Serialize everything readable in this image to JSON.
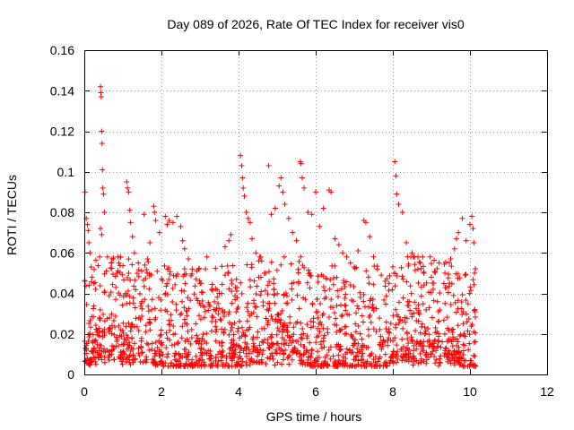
{
  "chart_data": {
    "type": "scatter",
    "title": "Day 089 of 2026, Rate Of TEC Index for receiver vis0",
    "xlabel": "GPS time / hours",
    "ylabel": "ROTI / TECUs",
    "xlim": [
      0,
      12
    ],
    "ylim": [
      0,
      0.16
    ],
    "xticks": [
      0,
      2,
      4,
      6,
      8,
      10,
      12
    ],
    "yticks": [
      0,
      0.02,
      0.04,
      0.06,
      0.08,
      0.1,
      0.12,
      0.14,
      0.16
    ],
    "grid": true,
    "marker": "plus",
    "color": "#ff0000",
    "data_range_hours": [
      0,
      10.15
    ],
    "series": [
      {
        "name": "vis0",
        "points": [
          [
            0.02,
            0.09
          ],
          [
            0.05,
            0.077
          ],
          [
            0.08,
            0.074
          ],
          [
            0.1,
            0.071
          ],
          [
            0.12,
            0.065
          ],
          [
            0.15,
            0.06
          ],
          [
            0.18,
            0.053
          ],
          [
            0.2,
            0.048
          ],
          [
            0.25,
            0.045
          ],
          [
            0.42,
            0.142
          ],
          [
            0.43,
            0.139
          ],
          [
            0.44,
            0.137
          ],
          [
            0.45,
            0.12
          ],
          [
            0.46,
            0.114
          ],
          [
            0.47,
            0.101
          ],
          [
            0.48,
            0.092
          ],
          [
            0.5,
            0.089
          ],
          [
            0.52,
            0.08
          ],
          [
            0.42,
            0.072
          ],
          [
            0.45,
            0.069
          ],
          [
            0.6,
            0.058
          ],
          [
            0.7,
            0.055
          ],
          [
            0.85,
            0.05
          ],
          [
            1.1,
            0.095
          ],
          [
            1.12,
            0.092
          ],
          [
            1.15,
            0.09
          ],
          [
            1.18,
            0.081
          ],
          [
            1.2,
            0.075
          ],
          [
            1.25,
            0.068
          ],
          [
            1.3,
            0.06
          ],
          [
            1.4,
            0.055
          ],
          [
            1.55,
            0.079
          ],
          [
            1.7,
            0.065
          ],
          [
            1.8,
            0.083
          ],
          [
            1.82,
            0.08
          ],
          [
            1.85,
            0.076
          ],
          [
            1.95,
            0.07
          ],
          [
            2.1,
            0.078
          ],
          [
            2.15,
            0.074
          ],
          [
            2.2,
            0.076
          ],
          [
            2.3,
            0.075
          ],
          [
            2.4,
            0.078
          ],
          [
            2.5,
            0.073
          ],
          [
            2.55,
            0.066
          ],
          [
            2.6,
            0.062
          ],
          [
            2.7,
            0.057
          ],
          [
            2.8,
            0.052
          ],
          [
            2.9,
            0.047
          ],
          [
            3.0,
            0.045
          ],
          [
            3.18,
            0.058
          ],
          [
            3.3,
            0.042
          ],
          [
            3.5,
            0.04
          ],
          [
            3.65,
            0.063
          ],
          [
            3.75,
            0.066
          ],
          [
            3.8,
            0.069
          ],
          [
            4.05,
            0.108
          ],
          [
            4.08,
            0.103
          ],
          [
            4.1,
            0.097
          ],
          [
            4.12,
            0.092
          ],
          [
            4.15,
            0.088
          ],
          [
            4.2,
            0.08
          ],
          [
            4.25,
            0.077
          ],
          [
            4.3,
            0.075
          ],
          [
            4.35,
            0.067
          ],
          [
            4.45,
            0.06
          ],
          [
            4.55,
            0.058
          ],
          [
            4.6,
            0.056
          ],
          [
            4.7,
            0.05
          ],
          [
            4.78,
            0.103
          ],
          [
            4.85,
            0.079
          ],
          [
            4.95,
            0.082
          ],
          [
            5.05,
            0.093
          ],
          [
            5.1,
            0.097
          ],
          [
            5.15,
            0.09
          ],
          [
            5.2,
            0.084
          ],
          [
            5.3,
            0.077
          ],
          [
            5.4,
            0.07
          ],
          [
            5.5,
            0.066
          ],
          [
            5.6,
            0.105
          ],
          [
            5.62,
            0.104
          ],
          [
            5.65,
            0.097
          ],
          [
            5.7,
            0.092
          ],
          [
            5.8,
            0.08
          ],
          [
            5.9,
            0.079
          ],
          [
            6.0,
            0.09
          ],
          [
            6.1,
            0.073
          ],
          [
            6.2,
            0.082
          ],
          [
            6.35,
            0.091
          ],
          [
            6.4,
            0.09
          ],
          [
            6.5,
            0.067
          ],
          [
            6.6,
            0.064
          ],
          [
            6.7,
            0.06
          ],
          [
            6.8,
            0.058
          ],
          [
            6.9,
            0.055
          ],
          [
            7.0,
            0.053
          ],
          [
            7.1,
            0.061
          ],
          [
            7.25,
            0.076
          ],
          [
            7.3,
            0.075
          ],
          [
            7.4,
            0.068
          ],
          [
            7.5,
            0.058
          ],
          [
            7.6,
            0.052
          ],
          [
            7.7,
            0.049
          ],
          [
            7.8,
            0.046
          ],
          [
            7.9,
            0.045
          ],
          [
            8.05,
            0.105
          ],
          [
            8.08,
            0.098
          ],
          [
            8.1,
            0.089
          ],
          [
            8.15,
            0.084
          ],
          [
            8.25,
            0.08
          ],
          [
            8.35,
            0.065
          ],
          [
            8.5,
            0.06
          ],
          [
            8.65,
            0.052
          ],
          [
            8.8,
            0.05
          ],
          [
            9.0,
            0.048
          ],
          [
            9.2,
            0.055
          ],
          [
            9.35,
            0.05
          ],
          [
            9.5,
            0.057
          ],
          [
            9.6,
            0.062
          ],
          [
            9.65,
            0.067
          ],
          [
            9.7,
            0.07
          ],
          [
            9.8,
            0.077
          ],
          [
            9.9,
            0.066
          ],
          [
            10.0,
            0.074
          ],
          [
            10.05,
            0.078
          ],
          [
            10.08,
            0.072
          ],
          [
            10.1,
            0.065
          ],
          [
            10.12,
            0.05
          ]
        ]
      }
    ]
  }
}
